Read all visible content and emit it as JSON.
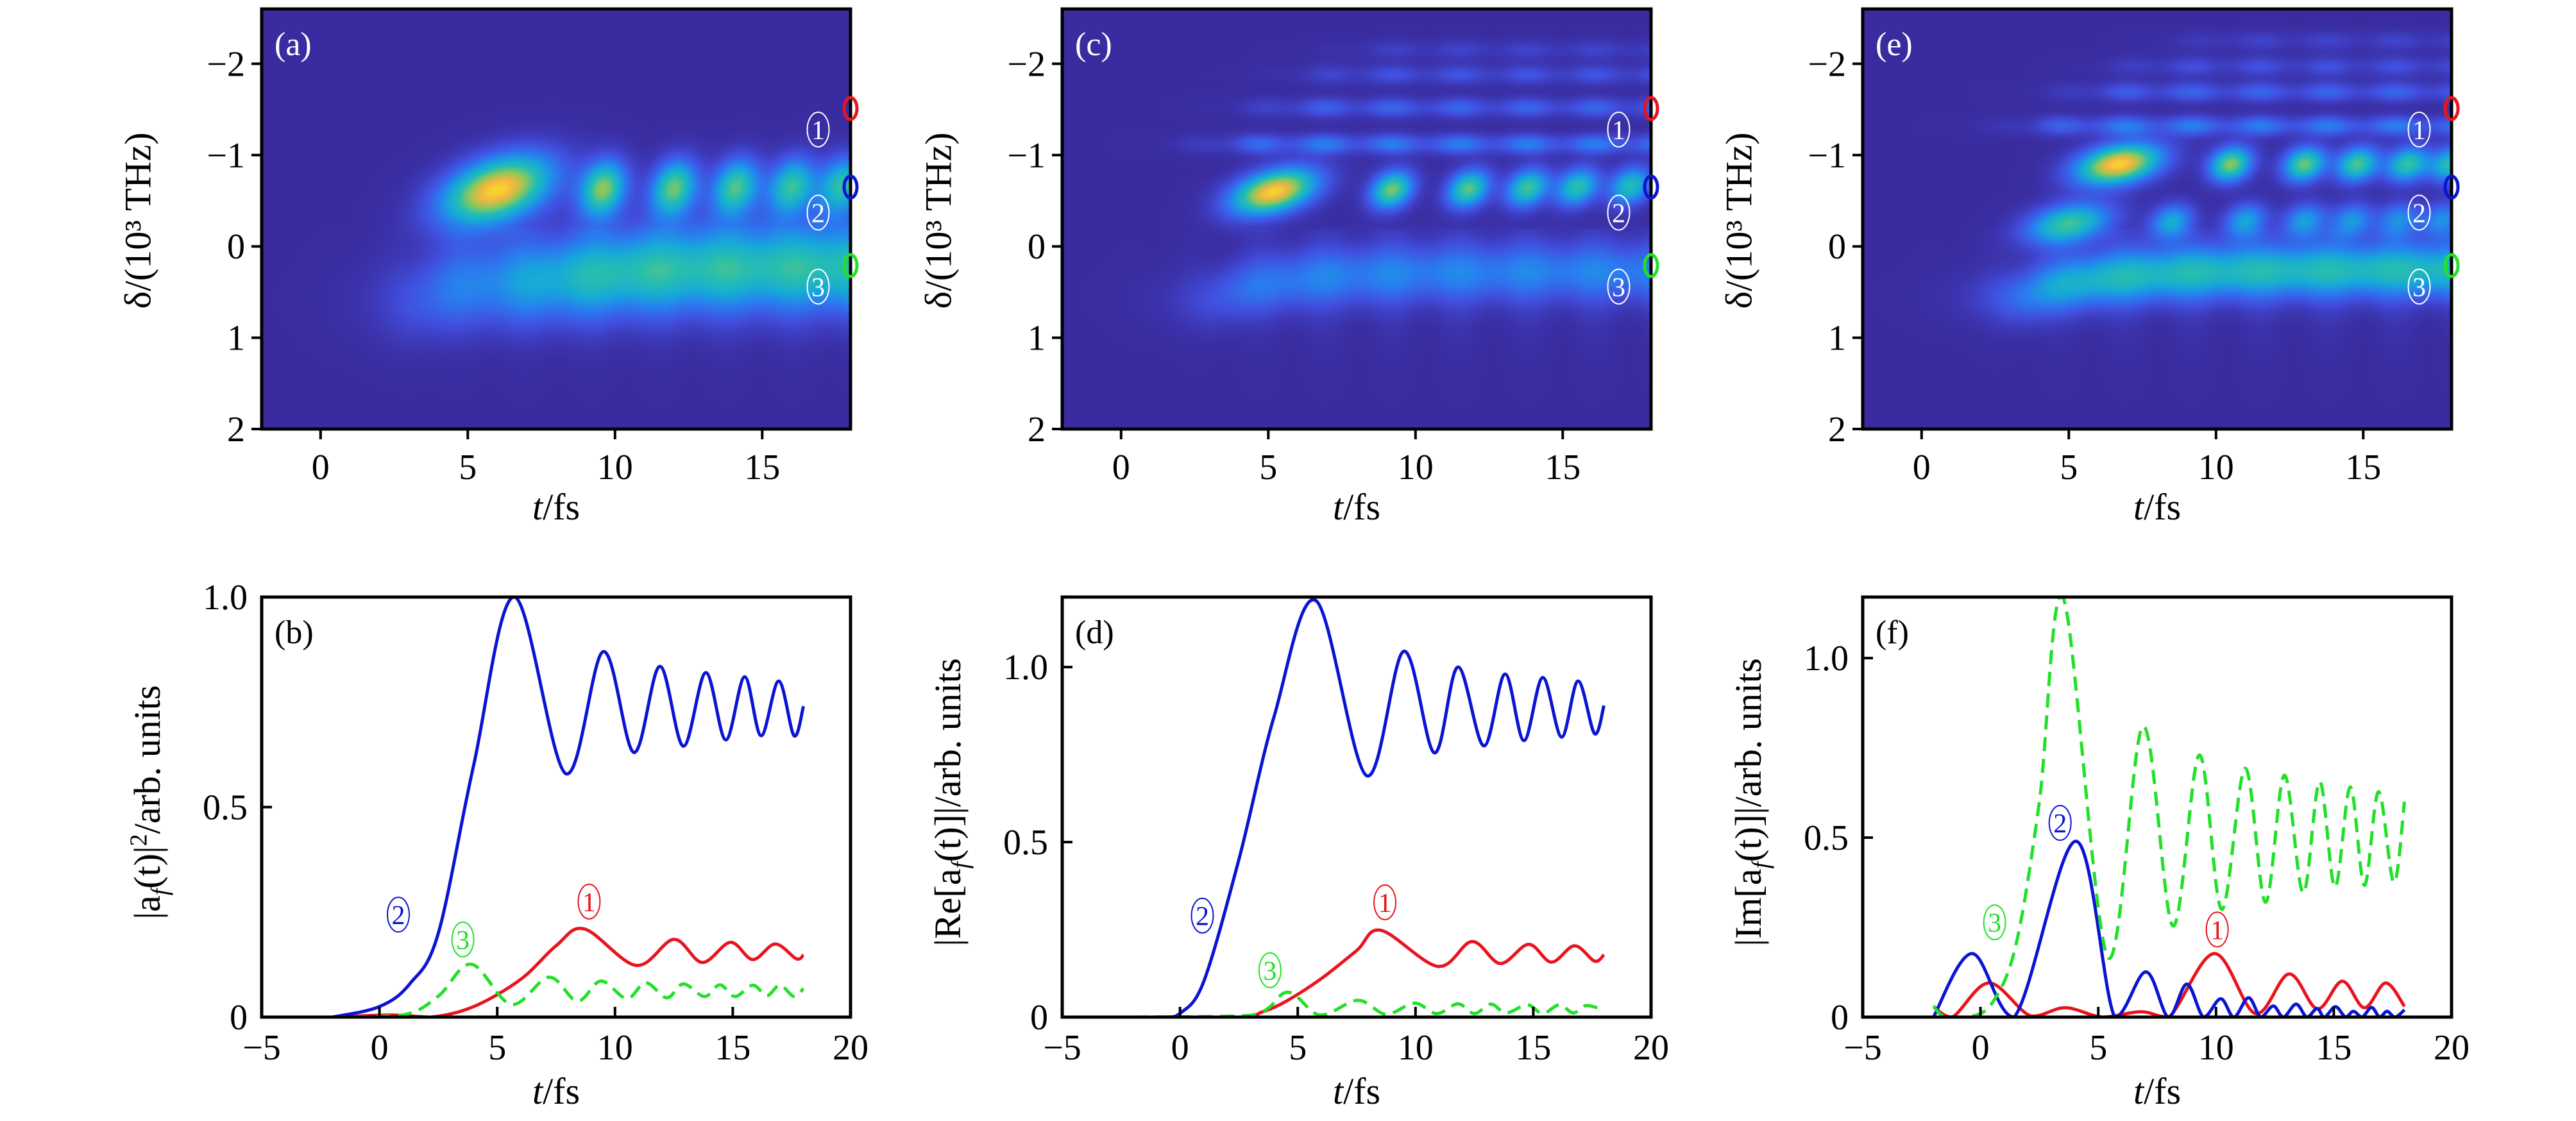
{
  "colormap": [
    "#3a2ca0",
    "#4150e0",
    "#2a7cf0",
    "#16aad8",
    "#28bfae",
    "#8ec85a",
    "#f4b640",
    "#f8f020"
  ],
  "series_colors": {
    "1": "#e8141e",
    "2": "#0a14d2",
    "3": "#22e028"
  },
  "chart_data": [
    {
      "id": "a",
      "type": "heatmap",
      "panel_label": "(a)",
      "x_name": "t",
      "x_unit": "/fs",
      "ylabel": "δ/(10³ THz)",
      "xlim": [
        -2,
        18
      ],
      "ylim": [
        -2.6,
        2
      ],
      "xticks": [
        "0",
        "5",
        "10",
        "15"
      ],
      "xtick_values": [
        0,
        5,
        10,
        15
      ],
      "yticks": [
        "−2",
        "−1",
        "0",
        "1",
        "2"
      ],
      "ytick_values": [
        -2,
        -1,
        0,
        1,
        2
      ],
      "blobs": [
        [
          6.0,
          -0.62,
          0.95
        ],
        [
          9.6,
          -0.63,
          0.72
        ],
        [
          12.0,
          -0.64,
          0.68
        ],
        [
          14.1,
          -0.65,
          0.64
        ],
        [
          16.0,
          -0.66,
          0.6
        ],
        [
          17.7,
          -0.67,
          0.58
        ]
      ],
      "bands": [
        [
          -0.55,
          0.3,
          3.0
        ],
        [
          -1.6,
          0.17,
          7
        ],
        [
          -2.1,
          0.1,
          9
        ]
      ],
      "fringes": [],
      "markers": [
        {
          "label": "1",
          "delta": -1.51
        },
        {
          "label": "2",
          "delta": -0.65
        },
        {
          "label": "3",
          "delta": 0.21
        }
      ]
    },
    {
      "id": "c",
      "type": "heatmap",
      "panel_label": "(c)",
      "x_name": "t",
      "x_unit": "/fs",
      "ylabel": "δ/(10³ THz)",
      "xlim": [
        -2,
        18
      ],
      "ylim": [
        -2.6,
        2
      ],
      "xticks": [
        "0",
        "5",
        "10",
        "15"
      ],
      "xtick_values": [
        0,
        5,
        10,
        15
      ],
      "yticks": [
        "−2",
        "−1",
        "0",
        "1",
        "2"
      ],
      "ytick_values": [
        -2,
        -1,
        0,
        1,
        2
      ],
      "blobs": [
        [
          5.2,
          -0.6,
          0.95
        ],
        [
          9.2,
          -0.62,
          0.7
        ],
        [
          11.8,
          -0.63,
          0.66
        ],
        [
          13.8,
          -0.64,
          0.62
        ],
        [
          15.5,
          -0.65,
          0.58
        ],
        [
          17.3,
          -0.66,
          0.55
        ]
      ],
      "bands": [
        [
          -0.5,
          0.28,
          3.0
        ]
      ],
      "fringes": [
        [
          -1.12,
          0.3,
          3.5
        ],
        [
          -1.52,
          0.22,
          5
        ],
        [
          -1.88,
          0.16,
          6.5
        ],
        [
          -2.15,
          0.1,
          8
        ]
      ],
      "markers": [
        {
          "label": "1",
          "delta": -1.51
        },
        {
          "label": "2",
          "delta": -0.65
        },
        {
          "label": "3",
          "delta": 0.21
        }
      ]
    },
    {
      "id": "e",
      "type": "heatmap",
      "panel_label": "(e)",
      "x_name": "t",
      "x_unit": "/fs",
      "ylabel": "δ/(10³ THz)",
      "xlim": [
        -2,
        18
      ],
      "ylim": [
        -2.6,
        2
      ],
      "xticks": [
        "0",
        "5",
        "10",
        "15"
      ],
      "xtick_values": [
        0,
        5,
        10,
        15
      ],
      "yticks": [
        "−2",
        "−1",
        "0",
        "1",
        "2"
      ],
      "ytick_values": [
        -2,
        -1,
        0,
        1,
        2
      ],
      "blobs": [
        [
          6.7,
          -0.9,
          0.95
        ],
        [
          10.5,
          -0.9,
          0.72
        ],
        [
          13.0,
          -0.9,
          0.68
        ],
        [
          14.8,
          -0.9,
          0.64
        ],
        [
          16.5,
          -0.9,
          0.6
        ],
        [
          18.0,
          -0.9,
          0.58
        ],
        [
          5.0,
          -0.25,
          0.62
        ],
        [
          8.5,
          -0.27,
          0.45
        ],
        [
          11.0,
          -0.28,
          0.42
        ],
        [
          13.0,
          -0.28,
          0.4
        ],
        [
          14.6,
          -0.28,
          0.38
        ],
        [
          16.2,
          -0.29,
          0.36
        ],
        [
          17.7,
          -0.29,
          0.35
        ]
      ],
      "bands": [
        [
          -0.85,
          0.28,
          3.5
        ],
        [
          -0.2,
          0.24,
          3.0
        ]
      ],
      "fringes": [
        [
          -1.32,
          0.3,
          4
        ],
        [
          -1.69,
          0.22,
          5.5
        ],
        [
          -1.97,
          0.15,
          7
        ],
        [
          -2.25,
          0.1,
          9
        ]
      ],
      "markers": [
        {
          "label": "1",
          "delta": -1.51
        },
        {
          "label": "2",
          "delta": -0.65
        },
        {
          "label": "3",
          "delta": 0.21
        }
      ]
    },
    {
      "id": "b",
      "type": "line",
      "panel_label": "(b)",
      "x_name": "t",
      "x_unit": "/fs",
      "ylabel_parts": [
        "|a",
        "f",
        "(t)|",
        "2",
        "/arb. units"
      ],
      "xlim": [
        -5,
        20
      ],
      "ylim": [
        0,
        1.0
      ],
      "xticks": [
        "−5",
        "0",
        "5",
        "10",
        "15",
        "20"
      ],
      "xtick_values": [
        -5,
        0,
        5,
        10,
        15,
        20
      ],
      "yticks": [
        "0",
        "0.5",
        "1.0"
      ],
      "ytick_values": [
        0,
        0.5,
        1.0
      ],
      "series": [
        {
          "name": "1",
          "dashed": false,
          "x": [
            -2,
            0.5,
            2.2,
            4,
            6,
            7.5,
            8.7,
            10.9,
            12.5,
            13.7,
            14.9,
            15.85,
            16.8,
            17.7,
            18
          ],
          "y": [
            0,
            0.005,
            0,
            0.025,
            0.09,
            0.17,
            0.21,
            0.123,
            0.185,
            0.13,
            0.178,
            0.137,
            0.174,
            0.139,
            0.148
          ]
        },
        {
          "name": "2",
          "dashed": false,
          "x": [
            -2,
            0,
            1.3,
            2.5,
            4,
            5.73,
            7.9,
            9.5,
            10.8,
            11.9,
            12.9,
            13.85,
            14.7,
            15.5,
            16.2,
            16.95,
            17.6,
            18
          ],
          "y": [
            0,
            0.025,
            0.08,
            0.2,
            0.6,
            1.0,
            0.58,
            0.87,
            0.63,
            0.835,
            0.645,
            0.82,
            0.66,
            0.81,
            0.67,
            0.8,
            0.67,
            0.74
          ]
        },
        {
          "name": "3",
          "dashed": true,
          "x": [
            -2,
            1,
            2.5,
            3.9,
            5.6,
            7.2,
            8.4,
            9.4,
            10.5,
            11.3,
            12.2,
            12.9,
            13.8,
            14.45,
            15.1,
            15.85,
            16.45,
            17.0,
            17.6,
            18
          ],
          "y": [
            0,
            0.005,
            0.05,
            0.126,
            0.03,
            0.095,
            0.038,
            0.086,
            0.044,
            0.082,
            0.046,
            0.079,
            0.049,
            0.077,
            0.049,
            0.076,
            0.051,
            0.076,
            0.049,
            0.068
          ]
        }
      ]
    },
    {
      "id": "d",
      "type": "line",
      "panel_label": "(d)",
      "x_name": "t",
      "x_unit": "/fs",
      "ylabel_parts": [
        "|Re[a",
        "f",
        "(t)]|",
        "",
        "/arb. units"
      ],
      "xlim": [
        -5,
        20
      ],
      "ylim": [
        0,
        1.2
      ],
      "xticks": [
        "−5",
        "0",
        "5",
        "10",
        "15",
        "20"
      ],
      "xtick_values": [
        -5,
        0,
        5,
        10,
        15,
        20
      ],
      "yticks": [
        "0",
        "0.5",
        "1.0"
      ],
      "ytick_values": [
        0,
        0.5,
        1.0
      ],
      "series": [
        {
          "name": "1",
          "dashed": false,
          "x": [
            -2,
            2.5,
            3.5,
            4.5,
            6,
            7.5,
            8.53,
            10.95,
            12.4,
            13.6,
            14.8,
            15.77,
            16.75,
            17.6,
            18
          ],
          "y": [
            0,
            0,
            0.015,
            0.045,
            0.11,
            0.19,
            0.248,
            0.145,
            0.216,
            0.153,
            0.208,
            0.157,
            0.204,
            0.16,
            0.178
          ]
        },
        {
          "name": "2",
          "dashed": false,
          "x": [
            -2,
            -0.5,
            0,
            1,
            2.5,
            4,
            5.77,
            7.92,
            9.5,
            10.8,
            11.8,
            12.9,
            13.8,
            14.6,
            15.4,
            16.2,
            16.9,
            17.6,
            18
          ],
          "y": [
            0,
            0,
            0.01,
            0.1,
            0.45,
            0.86,
            1.19,
            0.69,
            1.045,
            0.755,
            1.0,
            0.775,
            0.98,
            0.79,
            0.97,
            0.8,
            0.96,
            0.81,
            0.89
          ]
        },
        {
          "name": "3",
          "dashed": true,
          "x": [
            -2,
            3,
            4.57,
            5.93,
            7.55,
            8.75,
            9.95,
            10.9,
            11.8,
            12.5,
            13.2,
            13.85,
            14.75,
            15.4,
            16.1,
            16.7,
            17.25,
            18
          ],
          "y": [
            0,
            0.005,
            0.071,
            0.006,
            0.048,
            0.008,
            0.04,
            0.01,
            0.038,
            0.01,
            0.037,
            0.012,
            0.035,
            0.01,
            0.035,
            0.012,
            0.033,
            0.02
          ]
        }
      ]
    },
    {
      "id": "f",
      "type": "line",
      "panel_label": "(f)",
      "x_name": "t",
      "x_unit": "/fs",
      "ylabel_parts": [
        "|Im[a",
        "f",
        "(t)]|",
        "",
        "/arb. units"
      ],
      "xlim": [
        -5,
        20
      ],
      "ylim": [
        0,
        1.17
      ],
      "xticks": [
        "−5",
        "0",
        "5",
        "10",
        "15",
        "20"
      ],
      "xtick_values": [
        -5,
        0,
        5,
        10,
        15,
        20
      ],
      "yticks": [
        "0",
        "0.5",
        "1.0"
      ],
      "ytick_values": [
        0,
        0.5,
        1.0
      ],
      "series": [
        {
          "name": "1",
          "dashed": false,
          "x": [
            -2,
            -1.2,
            0.36,
            2.14,
            3.6,
            5.2,
            6.8,
            8,
            9.93,
            11.67,
            13.1,
            14.3,
            15.36,
            16.3,
            17.2,
            18
          ],
          "y": [
            0.03,
            0,
            0.095,
            0.003,
            0.026,
            0,
            0.015,
            0,
            0.177,
            0.01,
            0.12,
            0.023,
            0.1,
            0.026,
            0.095,
            0.03
          ]
        },
        {
          "name": "2",
          "dashed": false,
          "x": [
            -2,
            -0.36,
            1.43,
            4.05,
            5.7,
            7.02,
            7.98,
            8.76,
            9.48,
            10.2,
            10.76,
            11.38,
            11.9,
            12.43,
            12.86,
            13.4,
            13.86,
            14.29,
            14.6,
            15.07,
            15.5,
            15.83,
            16.2,
            16.6,
            16.95,
            17.26,
            17.6,
            18
          ],
          "y": [
            0,
            0.177,
            0,
            0.49,
            0,
            0.126,
            0,
            0.092,
            0,
            0.051,
            0,
            0.054,
            0,
            0.031,
            0,
            0.036,
            0,
            0.024,
            0,
            0.029,
            0,
            0.016,
            0,
            0.027,
            0,
            0.016,
            0,
            0.02
          ]
        },
        {
          "name": "3",
          "dashed": true,
          "x": [
            -2,
            -1.5,
            -0.5,
            0.5,
            1.5,
            2.5,
            3.52,
            5.4,
            6.9,
            8.17,
            9.29,
            10.24,
            11.24,
            12.1,
            12.9,
            13.7,
            14.4,
            15.05,
            15.7,
            16.3,
            16.9,
            17.55,
            18
          ],
          "y": [
            0.03,
            0,
            0,
            0.04,
            0.2,
            0.6,
            1.166,
            0.167,
            0.81,
            0.254,
            0.73,
            0.3,
            0.693,
            0.32,
            0.674,
            0.346,
            0.656,
            0.362,
            0.641,
            0.367,
            0.628,
            0.375,
            0.6
          ]
        }
      ]
    }
  ]
}
